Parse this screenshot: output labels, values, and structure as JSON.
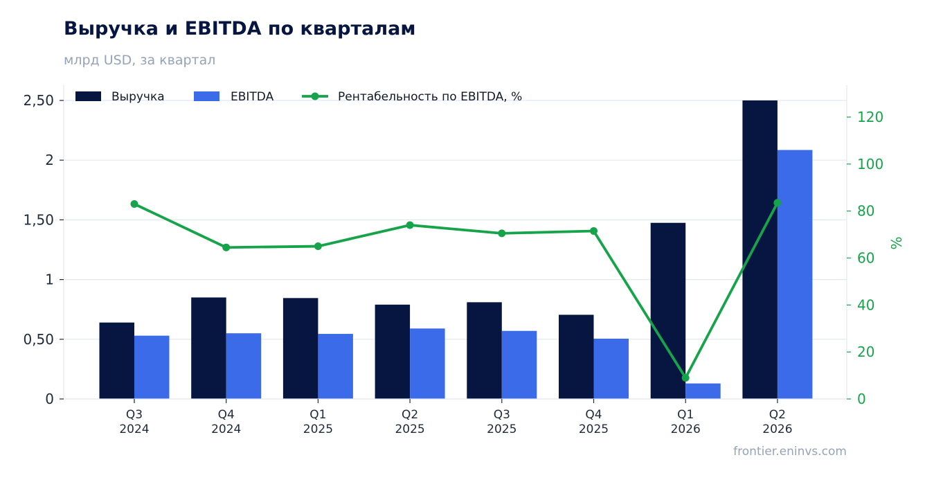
{
  "header": {
    "title": "Выручка и EBITDA по кварталам",
    "subtitle": "млрд USD, за квартал"
  },
  "footer": {
    "source": "frontier.eninvs.com"
  },
  "colors": {
    "revenue": "#061640",
    "ebitda": "#3b6be8",
    "margin": "#16a34a",
    "grid": "#e2e8f0",
    "axis_text": "#1e293b",
    "right_axis_text": "#16a34a"
  },
  "chart_data": {
    "type": "bar",
    "categories": [
      [
        "Q3",
        "2024"
      ],
      [
        "Q4",
        "2024"
      ],
      [
        "Q1",
        "2025"
      ],
      [
        "Q2",
        "2025"
      ],
      [
        "Q3",
        "2025"
      ],
      [
        "Q4",
        "2025"
      ],
      [
        "Q1",
        "2026"
      ],
      [
        "Q2",
        "2026"
      ]
    ],
    "series": [
      {
        "name": "Выручка",
        "type": "bar",
        "axis": "left",
        "values": [
          0.64,
          0.85,
          0.845,
          0.79,
          0.81,
          0.705,
          1.475,
          2.5
        ]
      },
      {
        "name": "EBITDA",
        "type": "bar",
        "axis": "left",
        "values": [
          0.53,
          0.55,
          0.545,
          0.59,
          0.57,
          0.505,
          0.13,
          2.085
        ]
      },
      {
        "name": "Рентабельность по EBITDA, %",
        "type": "line",
        "axis": "right",
        "values": [
          83,
          64.5,
          65,
          74,
          70.5,
          71.5,
          9,
          83.5
        ]
      }
    ],
    "y_left": {
      "ylim": [
        0,
        2.5
      ],
      "ticks": [
        0,
        0.5,
        1,
        1.5,
        2,
        2.5
      ],
      "tick_labels": [
        "0",
        "0,50",
        "1",
        "1,50",
        "2",
        "2,50"
      ]
    },
    "y_right": {
      "ylabel": "%",
      "ylim": [
        0,
        133.3
      ],
      "ticks": [
        0,
        20,
        40,
        60,
        80,
        100,
        120
      ],
      "tick_labels": [
        "0",
        "20",
        "40",
        "60",
        "80",
        "100",
        "120"
      ]
    },
    "grid": true,
    "legend": "top-left"
  }
}
